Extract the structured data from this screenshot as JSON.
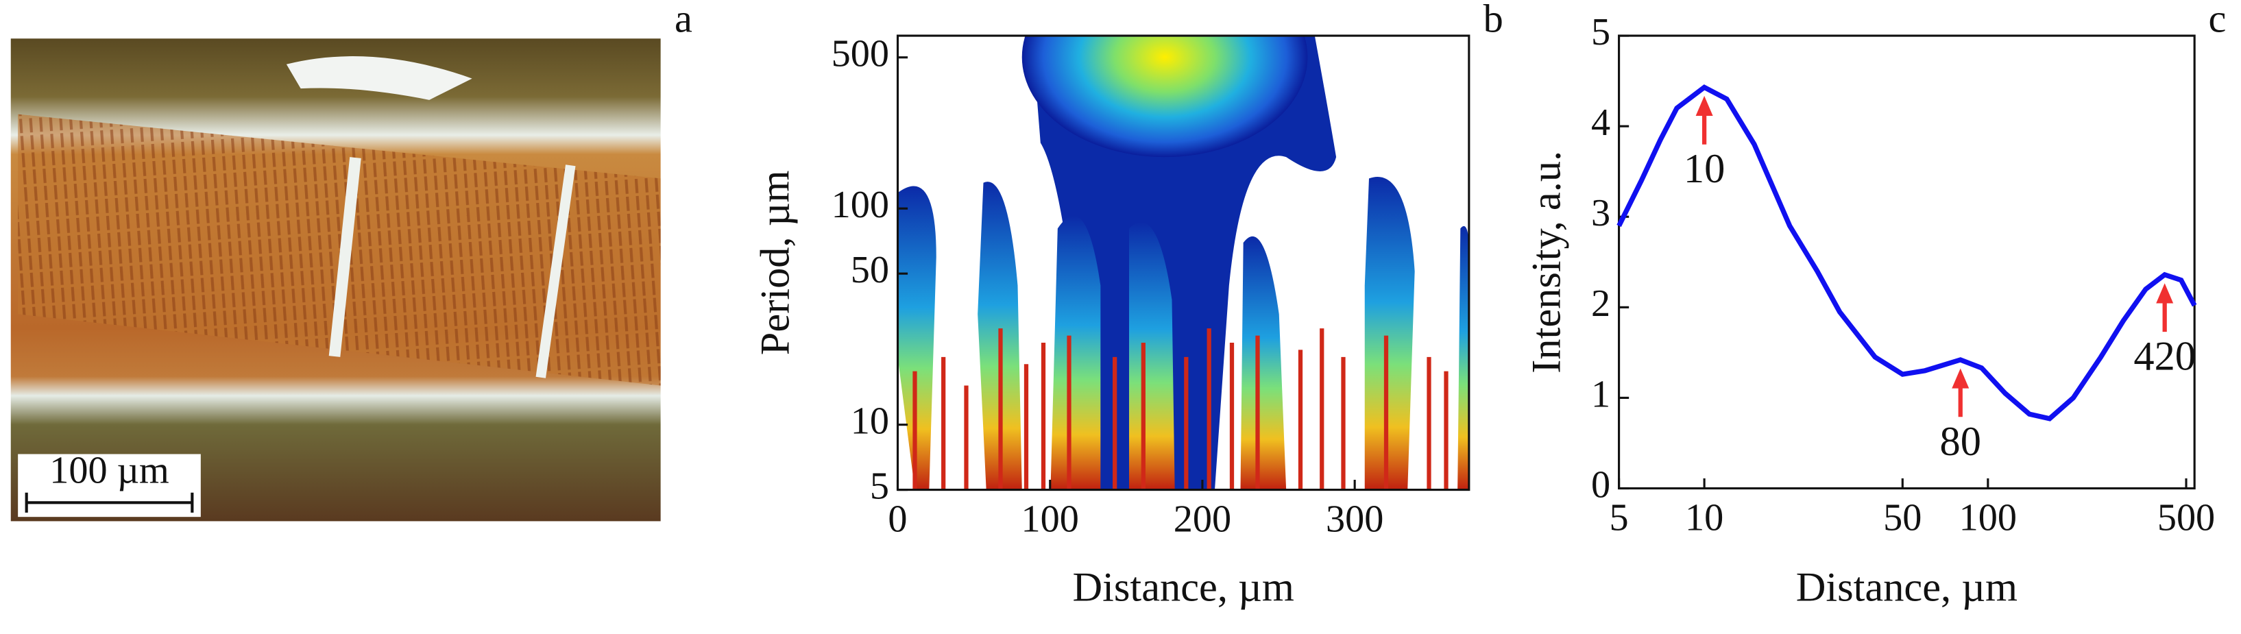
{
  "chart_data": [
    {
      "type": "image",
      "panel_label": "a",
      "scale_bar": "100 µm"
    },
    {
      "type": "heatmap",
      "panel_label": "b",
      "x_label": "Distance, µm",
      "y_label": "Period, µm",
      "xscale": "linear",
      "yscale": "log",
      "xlim": [
        0,
        375
      ],
      "ylim": [
        5,
        630
      ],
      "xticks": [
        0,
        100,
        200,
        300
      ],
      "yticks": [
        5,
        10,
        50,
        100,
        500
      ]
    },
    {
      "type": "line",
      "panel_label": "c",
      "x_label": "Distance, µm",
      "y_label": "Intensity, a.u.",
      "xscale": "log",
      "yscale": "linear",
      "xlim": [
        5,
        535
      ],
      "ylim": [
        0,
        5
      ],
      "xticks": [
        5,
        10,
        50,
        100,
        500
      ],
      "yticks": [
        0,
        1,
        2,
        3,
        4,
        5
      ],
      "color": "#1010f0",
      "x": [
        5,
        6,
        7,
        8,
        10,
        12,
        15,
        20,
        25,
        30,
        40,
        50,
        60,
        80,
        95,
        115,
        140,
        165,
        200,
        250,
        300,
        360,
        420,
        480,
        535
      ],
      "values": [
        2.9,
        3.4,
        3.85,
        4.2,
        4.43,
        4.3,
        3.8,
        2.9,
        2.4,
        1.95,
        1.45,
        1.26,
        1.3,
        1.42,
        1.33,
        1.05,
        0.82,
        0.77,
        1.0,
        1.45,
        1.85,
        2.2,
        2.36,
        2.3,
        2.02
      ],
      "annotations": [
        {
          "label": "10",
          "x": 10
        },
        {
          "label": "80",
          "x": 80
        },
        {
          "label": "420",
          "x": 420
        }
      ],
      "annotation_color": "#f03030"
    }
  ]
}
